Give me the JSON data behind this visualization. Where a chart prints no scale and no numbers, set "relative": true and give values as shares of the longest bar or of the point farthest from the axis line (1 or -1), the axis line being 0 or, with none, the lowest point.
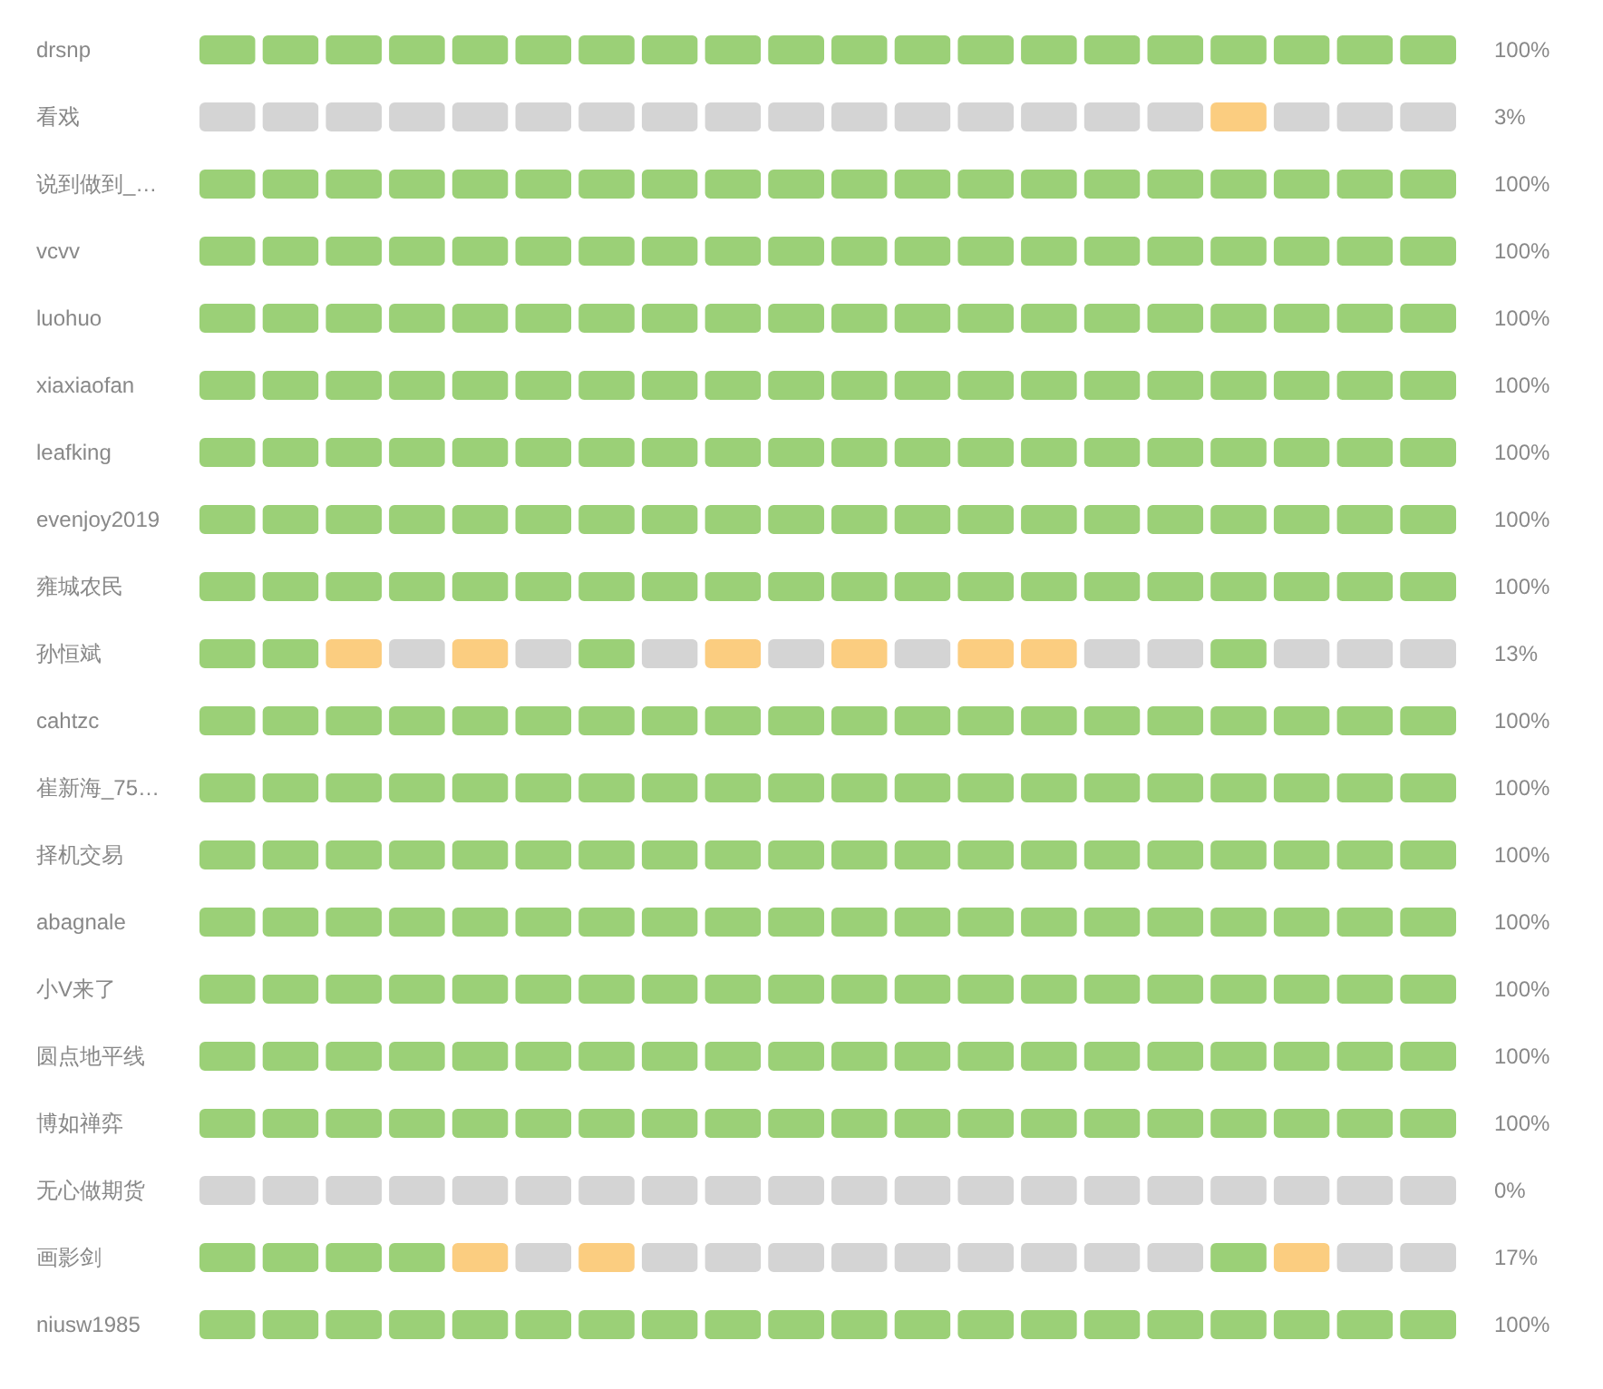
{
  "chart_data": {
    "type": "bar",
    "orientation": "horizontal",
    "stacked": true,
    "relative": true,
    "categories": [
      "drsnp",
      "看戏",
      "说到做到_…",
      "vcvv",
      "luohuo",
      "xiaxiaofan",
      "leafking",
      "evenjoy2019",
      "雍城农民",
      "孙恒斌",
      "cahtzc",
      "崔新海_75…",
      "择机交易",
      "abagnale",
      "小V来了",
      "圆点地平线",
      "博如禅弈",
      "无心做期货",
      "画影剑",
      "niusw1985"
    ],
    "annotations": [
      "100%",
      "3%",
      "100%",
      "100%",
      "100%",
      "100%",
      "100%",
      "100%",
      "100%",
      "13%",
      "100%",
      "100%",
      "100%",
      "100%",
      "100%",
      "100%",
      "100%",
      "0%",
      "17%",
      "100%"
    ],
    "series": [
      {
        "values": [
          0.05,
          0.05,
          0.05,
          0.05,
          0.05,
          0.05,
          0.05,
          0.05,
          0.05,
          0.05,
          0.05,
          0.05,
          0.05,
          0.05,
          0.05,
          0.05,
          0.05,
          0.05,
          0.05,
          0.05
        ],
        "colors": [
          "#9bd077",
          "#d4d4d4",
          "#9bd077",
          "#9bd077",
          "#9bd077",
          "#9bd077",
          "#9bd077",
          "#9bd077",
          "#9bd077",
          "#9bd077",
          "#9bd077",
          "#9bd077",
          "#9bd077",
          "#9bd077",
          "#9bd077",
          "#9bd077",
          "#9bd077",
          "#d4d4d4",
          "#9bd077",
          "#9bd077"
        ]
      },
      {
        "values": [
          0.05,
          0.05,
          0.05,
          0.05,
          0.05,
          0.05,
          0.05,
          0.05,
          0.05,
          0.05,
          0.05,
          0.05,
          0.05,
          0.05,
          0.05,
          0.05,
          0.05,
          0.05,
          0.05,
          0.05
        ],
        "colors": [
          "#9bd077",
          "#d4d4d4",
          "#9bd077",
          "#9bd077",
          "#9bd077",
          "#9bd077",
          "#9bd077",
          "#9bd077",
          "#9bd077",
          "#9bd077",
          "#9bd077",
          "#9bd077",
          "#9bd077",
          "#9bd077",
          "#9bd077",
          "#9bd077",
          "#9bd077",
          "#d4d4d4",
          "#9bd077",
          "#9bd077"
        ]
      },
      {
        "values": [
          0.05,
          0.05,
          0.05,
          0.05,
          0.05,
          0.05,
          0.05,
          0.05,
          0.05,
          0.05,
          0.05,
          0.05,
          0.05,
          0.05,
          0.05,
          0.05,
          0.05,
          0.05,
          0.05,
          0.05
        ],
        "colors": [
          "#9bd077",
          "#d4d4d4",
          "#9bd077",
          "#9bd077",
          "#9bd077",
          "#9bd077",
          "#9bd077",
          "#9bd077",
          "#9bd077",
          "#fbcd80",
          "#9bd077",
          "#9bd077",
          "#9bd077",
          "#9bd077",
          "#9bd077",
          "#9bd077",
          "#9bd077",
          "#d4d4d4",
          "#9bd077",
          "#9bd077"
        ]
      },
      {
        "values": [
          0.05,
          0.05,
          0.05,
          0.05,
          0.05,
          0.05,
          0.05,
          0.05,
          0.05,
          0.05,
          0.05,
          0.05,
          0.05,
          0.05,
          0.05,
          0.05,
          0.05,
          0.05,
          0.05,
          0.05
        ],
        "colors": [
          "#9bd077",
          "#d4d4d4",
          "#9bd077",
          "#9bd077",
          "#9bd077",
          "#9bd077",
          "#9bd077",
          "#9bd077",
          "#9bd077",
          "#d4d4d4",
          "#9bd077",
          "#9bd077",
          "#9bd077",
          "#9bd077",
          "#9bd077",
          "#9bd077",
          "#9bd077",
          "#d4d4d4",
          "#9bd077",
          "#9bd077"
        ]
      },
      {
        "values": [
          0.05,
          0.05,
          0.05,
          0.05,
          0.05,
          0.05,
          0.05,
          0.05,
          0.05,
          0.05,
          0.05,
          0.05,
          0.05,
          0.05,
          0.05,
          0.05,
          0.05,
          0.05,
          0.05,
          0.05
        ],
        "colors": [
          "#9bd077",
          "#d4d4d4",
          "#9bd077",
          "#9bd077",
          "#9bd077",
          "#9bd077",
          "#9bd077",
          "#9bd077",
          "#9bd077",
          "#fbcd80",
          "#9bd077",
          "#9bd077",
          "#9bd077",
          "#9bd077",
          "#9bd077",
          "#9bd077",
          "#9bd077",
          "#d4d4d4",
          "#fbcd80",
          "#9bd077"
        ]
      },
      {
        "values": [
          0.05,
          0.05,
          0.05,
          0.05,
          0.05,
          0.05,
          0.05,
          0.05,
          0.05,
          0.05,
          0.05,
          0.05,
          0.05,
          0.05,
          0.05,
          0.05,
          0.05,
          0.05,
          0.05,
          0.05
        ],
        "colors": [
          "#9bd077",
          "#d4d4d4",
          "#9bd077",
          "#9bd077",
          "#9bd077",
          "#9bd077",
          "#9bd077",
          "#9bd077",
          "#9bd077",
          "#d4d4d4",
          "#9bd077",
          "#9bd077",
          "#9bd077",
          "#9bd077",
          "#9bd077",
          "#9bd077",
          "#9bd077",
          "#d4d4d4",
          "#d4d4d4",
          "#9bd077"
        ]
      },
      {
        "values": [
          0.05,
          0.05,
          0.05,
          0.05,
          0.05,
          0.05,
          0.05,
          0.05,
          0.05,
          0.05,
          0.05,
          0.05,
          0.05,
          0.05,
          0.05,
          0.05,
          0.05,
          0.05,
          0.05,
          0.05
        ],
        "colors": [
          "#9bd077",
          "#d4d4d4",
          "#9bd077",
          "#9bd077",
          "#9bd077",
          "#9bd077",
          "#9bd077",
          "#9bd077",
          "#9bd077",
          "#9bd077",
          "#9bd077",
          "#9bd077",
          "#9bd077",
          "#9bd077",
          "#9bd077",
          "#9bd077",
          "#9bd077",
          "#d4d4d4",
          "#fbcd80",
          "#9bd077"
        ]
      },
      {
        "values": [
          0.05,
          0.05,
          0.05,
          0.05,
          0.05,
          0.05,
          0.05,
          0.05,
          0.05,
          0.05,
          0.05,
          0.05,
          0.05,
          0.05,
          0.05,
          0.05,
          0.05,
          0.05,
          0.05,
          0.05
        ],
        "colors": [
          "#9bd077",
          "#d4d4d4",
          "#9bd077",
          "#9bd077",
          "#9bd077",
          "#9bd077",
          "#9bd077",
          "#9bd077",
          "#9bd077",
          "#d4d4d4",
          "#9bd077",
          "#9bd077",
          "#9bd077",
          "#9bd077",
          "#9bd077",
          "#9bd077",
          "#9bd077",
          "#d4d4d4",
          "#d4d4d4",
          "#9bd077"
        ]
      },
      {
        "values": [
          0.05,
          0.05,
          0.05,
          0.05,
          0.05,
          0.05,
          0.05,
          0.05,
          0.05,
          0.05,
          0.05,
          0.05,
          0.05,
          0.05,
          0.05,
          0.05,
          0.05,
          0.05,
          0.05,
          0.05
        ],
        "colors": [
          "#9bd077",
          "#d4d4d4",
          "#9bd077",
          "#9bd077",
          "#9bd077",
          "#9bd077",
          "#9bd077",
          "#9bd077",
          "#9bd077",
          "#fbcd80",
          "#9bd077",
          "#9bd077",
          "#9bd077",
          "#9bd077",
          "#9bd077",
          "#9bd077",
          "#9bd077",
          "#d4d4d4",
          "#d4d4d4",
          "#9bd077"
        ]
      },
      {
        "values": [
          0.05,
          0.05,
          0.05,
          0.05,
          0.05,
          0.05,
          0.05,
          0.05,
          0.05,
          0.05,
          0.05,
          0.05,
          0.05,
          0.05,
          0.05,
          0.05,
          0.05,
          0.05,
          0.05,
          0.05
        ],
        "colors": [
          "#9bd077",
          "#d4d4d4",
          "#9bd077",
          "#9bd077",
          "#9bd077",
          "#9bd077",
          "#9bd077",
          "#9bd077",
          "#9bd077",
          "#d4d4d4",
          "#9bd077",
          "#9bd077",
          "#9bd077",
          "#9bd077",
          "#9bd077",
          "#9bd077",
          "#9bd077",
          "#d4d4d4",
          "#d4d4d4",
          "#9bd077"
        ]
      },
      {
        "values": [
          0.05,
          0.05,
          0.05,
          0.05,
          0.05,
          0.05,
          0.05,
          0.05,
          0.05,
          0.05,
          0.05,
          0.05,
          0.05,
          0.05,
          0.05,
          0.05,
          0.05,
          0.05,
          0.05,
          0.05
        ],
        "colors": [
          "#9bd077",
          "#d4d4d4",
          "#9bd077",
          "#9bd077",
          "#9bd077",
          "#9bd077",
          "#9bd077",
          "#9bd077",
          "#9bd077",
          "#fbcd80",
          "#9bd077",
          "#9bd077",
          "#9bd077",
          "#9bd077",
          "#9bd077",
          "#9bd077",
          "#9bd077",
          "#d4d4d4",
          "#d4d4d4",
          "#9bd077"
        ]
      },
      {
        "values": [
          0.05,
          0.05,
          0.05,
          0.05,
          0.05,
          0.05,
          0.05,
          0.05,
          0.05,
          0.05,
          0.05,
          0.05,
          0.05,
          0.05,
          0.05,
          0.05,
          0.05,
          0.05,
          0.05,
          0.05
        ],
        "colors": [
          "#9bd077",
          "#d4d4d4",
          "#9bd077",
          "#9bd077",
          "#9bd077",
          "#9bd077",
          "#9bd077",
          "#9bd077",
          "#9bd077",
          "#d4d4d4",
          "#9bd077",
          "#9bd077",
          "#9bd077",
          "#9bd077",
          "#9bd077",
          "#9bd077",
          "#9bd077",
          "#d4d4d4",
          "#d4d4d4",
          "#9bd077"
        ]
      },
      {
        "values": [
          0.05,
          0.05,
          0.05,
          0.05,
          0.05,
          0.05,
          0.05,
          0.05,
          0.05,
          0.05,
          0.05,
          0.05,
          0.05,
          0.05,
          0.05,
          0.05,
          0.05,
          0.05,
          0.05,
          0.05
        ],
        "colors": [
          "#9bd077",
          "#d4d4d4",
          "#9bd077",
          "#9bd077",
          "#9bd077",
          "#9bd077",
          "#9bd077",
          "#9bd077",
          "#9bd077",
          "#fbcd80",
          "#9bd077",
          "#9bd077",
          "#9bd077",
          "#9bd077",
          "#9bd077",
          "#9bd077",
          "#9bd077",
          "#d4d4d4",
          "#d4d4d4",
          "#9bd077"
        ]
      },
      {
        "values": [
          0.05,
          0.05,
          0.05,
          0.05,
          0.05,
          0.05,
          0.05,
          0.05,
          0.05,
          0.05,
          0.05,
          0.05,
          0.05,
          0.05,
          0.05,
          0.05,
          0.05,
          0.05,
          0.05,
          0.05
        ],
        "colors": [
          "#9bd077",
          "#d4d4d4",
          "#9bd077",
          "#9bd077",
          "#9bd077",
          "#9bd077",
          "#9bd077",
          "#9bd077",
          "#9bd077",
          "#fbcd80",
          "#9bd077",
          "#9bd077",
          "#9bd077",
          "#9bd077",
          "#9bd077",
          "#9bd077",
          "#9bd077",
          "#d4d4d4",
          "#d4d4d4",
          "#9bd077"
        ]
      },
      {
        "values": [
          0.05,
          0.05,
          0.05,
          0.05,
          0.05,
          0.05,
          0.05,
          0.05,
          0.05,
          0.05,
          0.05,
          0.05,
          0.05,
          0.05,
          0.05,
          0.05,
          0.05,
          0.05,
          0.05,
          0.05
        ],
        "colors": [
          "#9bd077",
          "#d4d4d4",
          "#9bd077",
          "#9bd077",
          "#9bd077",
          "#9bd077",
          "#9bd077",
          "#9bd077",
          "#9bd077",
          "#d4d4d4",
          "#9bd077",
          "#9bd077",
          "#9bd077",
          "#9bd077",
          "#9bd077",
          "#9bd077",
          "#9bd077",
          "#d4d4d4",
          "#d4d4d4",
          "#9bd077"
        ]
      },
      {
        "values": [
          0.05,
          0.05,
          0.05,
          0.05,
          0.05,
          0.05,
          0.05,
          0.05,
          0.05,
          0.05,
          0.05,
          0.05,
          0.05,
          0.05,
          0.05,
          0.05,
          0.05,
          0.05,
          0.05,
          0.05
        ],
        "colors": [
          "#9bd077",
          "#d4d4d4",
          "#9bd077",
          "#9bd077",
          "#9bd077",
          "#9bd077",
          "#9bd077",
          "#9bd077",
          "#9bd077",
          "#d4d4d4",
          "#9bd077",
          "#9bd077",
          "#9bd077",
          "#9bd077",
          "#9bd077",
          "#9bd077",
          "#9bd077",
          "#d4d4d4",
          "#d4d4d4",
          "#9bd077"
        ]
      },
      {
        "values": [
          0.05,
          0.05,
          0.05,
          0.05,
          0.05,
          0.05,
          0.05,
          0.05,
          0.05,
          0.05,
          0.05,
          0.05,
          0.05,
          0.05,
          0.05,
          0.05,
          0.05,
          0.05,
          0.05,
          0.05
        ],
        "colors": [
          "#9bd077",
          "#fbcd80",
          "#9bd077",
          "#9bd077",
          "#9bd077",
          "#9bd077",
          "#9bd077",
          "#9bd077",
          "#9bd077",
          "#9bd077",
          "#9bd077",
          "#9bd077",
          "#9bd077",
          "#9bd077",
          "#9bd077",
          "#9bd077",
          "#9bd077",
          "#d4d4d4",
          "#9bd077",
          "#9bd077"
        ]
      },
      {
        "values": [
          0.05,
          0.05,
          0.05,
          0.05,
          0.05,
          0.05,
          0.05,
          0.05,
          0.05,
          0.05,
          0.05,
          0.05,
          0.05,
          0.05,
          0.05,
          0.05,
          0.05,
          0.05,
          0.05,
          0.05
        ],
        "colors": [
          "#9bd077",
          "#d4d4d4",
          "#9bd077",
          "#9bd077",
          "#9bd077",
          "#9bd077",
          "#9bd077",
          "#9bd077",
          "#9bd077",
          "#d4d4d4",
          "#9bd077",
          "#9bd077",
          "#9bd077",
          "#9bd077",
          "#9bd077",
          "#9bd077",
          "#9bd077",
          "#d4d4d4",
          "#fbcd80",
          "#9bd077"
        ]
      },
      {
        "values": [
          0.05,
          0.05,
          0.05,
          0.05,
          0.05,
          0.05,
          0.05,
          0.05,
          0.05,
          0.05,
          0.05,
          0.05,
          0.05,
          0.05,
          0.05,
          0.05,
          0.05,
          0.05,
          0.05,
          0.05
        ],
        "colors": [
          "#9bd077",
          "#d4d4d4",
          "#9bd077",
          "#9bd077",
          "#9bd077",
          "#9bd077",
          "#9bd077",
          "#9bd077",
          "#9bd077",
          "#d4d4d4",
          "#9bd077",
          "#9bd077",
          "#9bd077",
          "#9bd077",
          "#9bd077",
          "#9bd077",
          "#9bd077",
          "#d4d4d4",
          "#d4d4d4",
          "#9bd077"
        ]
      },
      {
        "values": [
          0.05,
          0.05,
          0.05,
          0.05,
          0.05,
          0.05,
          0.05,
          0.05,
          0.05,
          0.05,
          0.05,
          0.05,
          0.05,
          0.05,
          0.05,
          0.05,
          0.05,
          0.05,
          0.05,
          0.05
        ],
        "colors": [
          "#9bd077",
          "#d4d4d4",
          "#9bd077",
          "#9bd077",
          "#9bd077",
          "#9bd077",
          "#9bd077",
          "#9bd077",
          "#9bd077",
          "#d4d4d4",
          "#9bd077",
          "#9bd077",
          "#9bd077",
          "#9bd077",
          "#9bd077",
          "#9bd077",
          "#9bd077",
          "#d4d4d4",
          "#d4d4d4",
          "#9bd077"
        ]
      }
    ]
  }
}
